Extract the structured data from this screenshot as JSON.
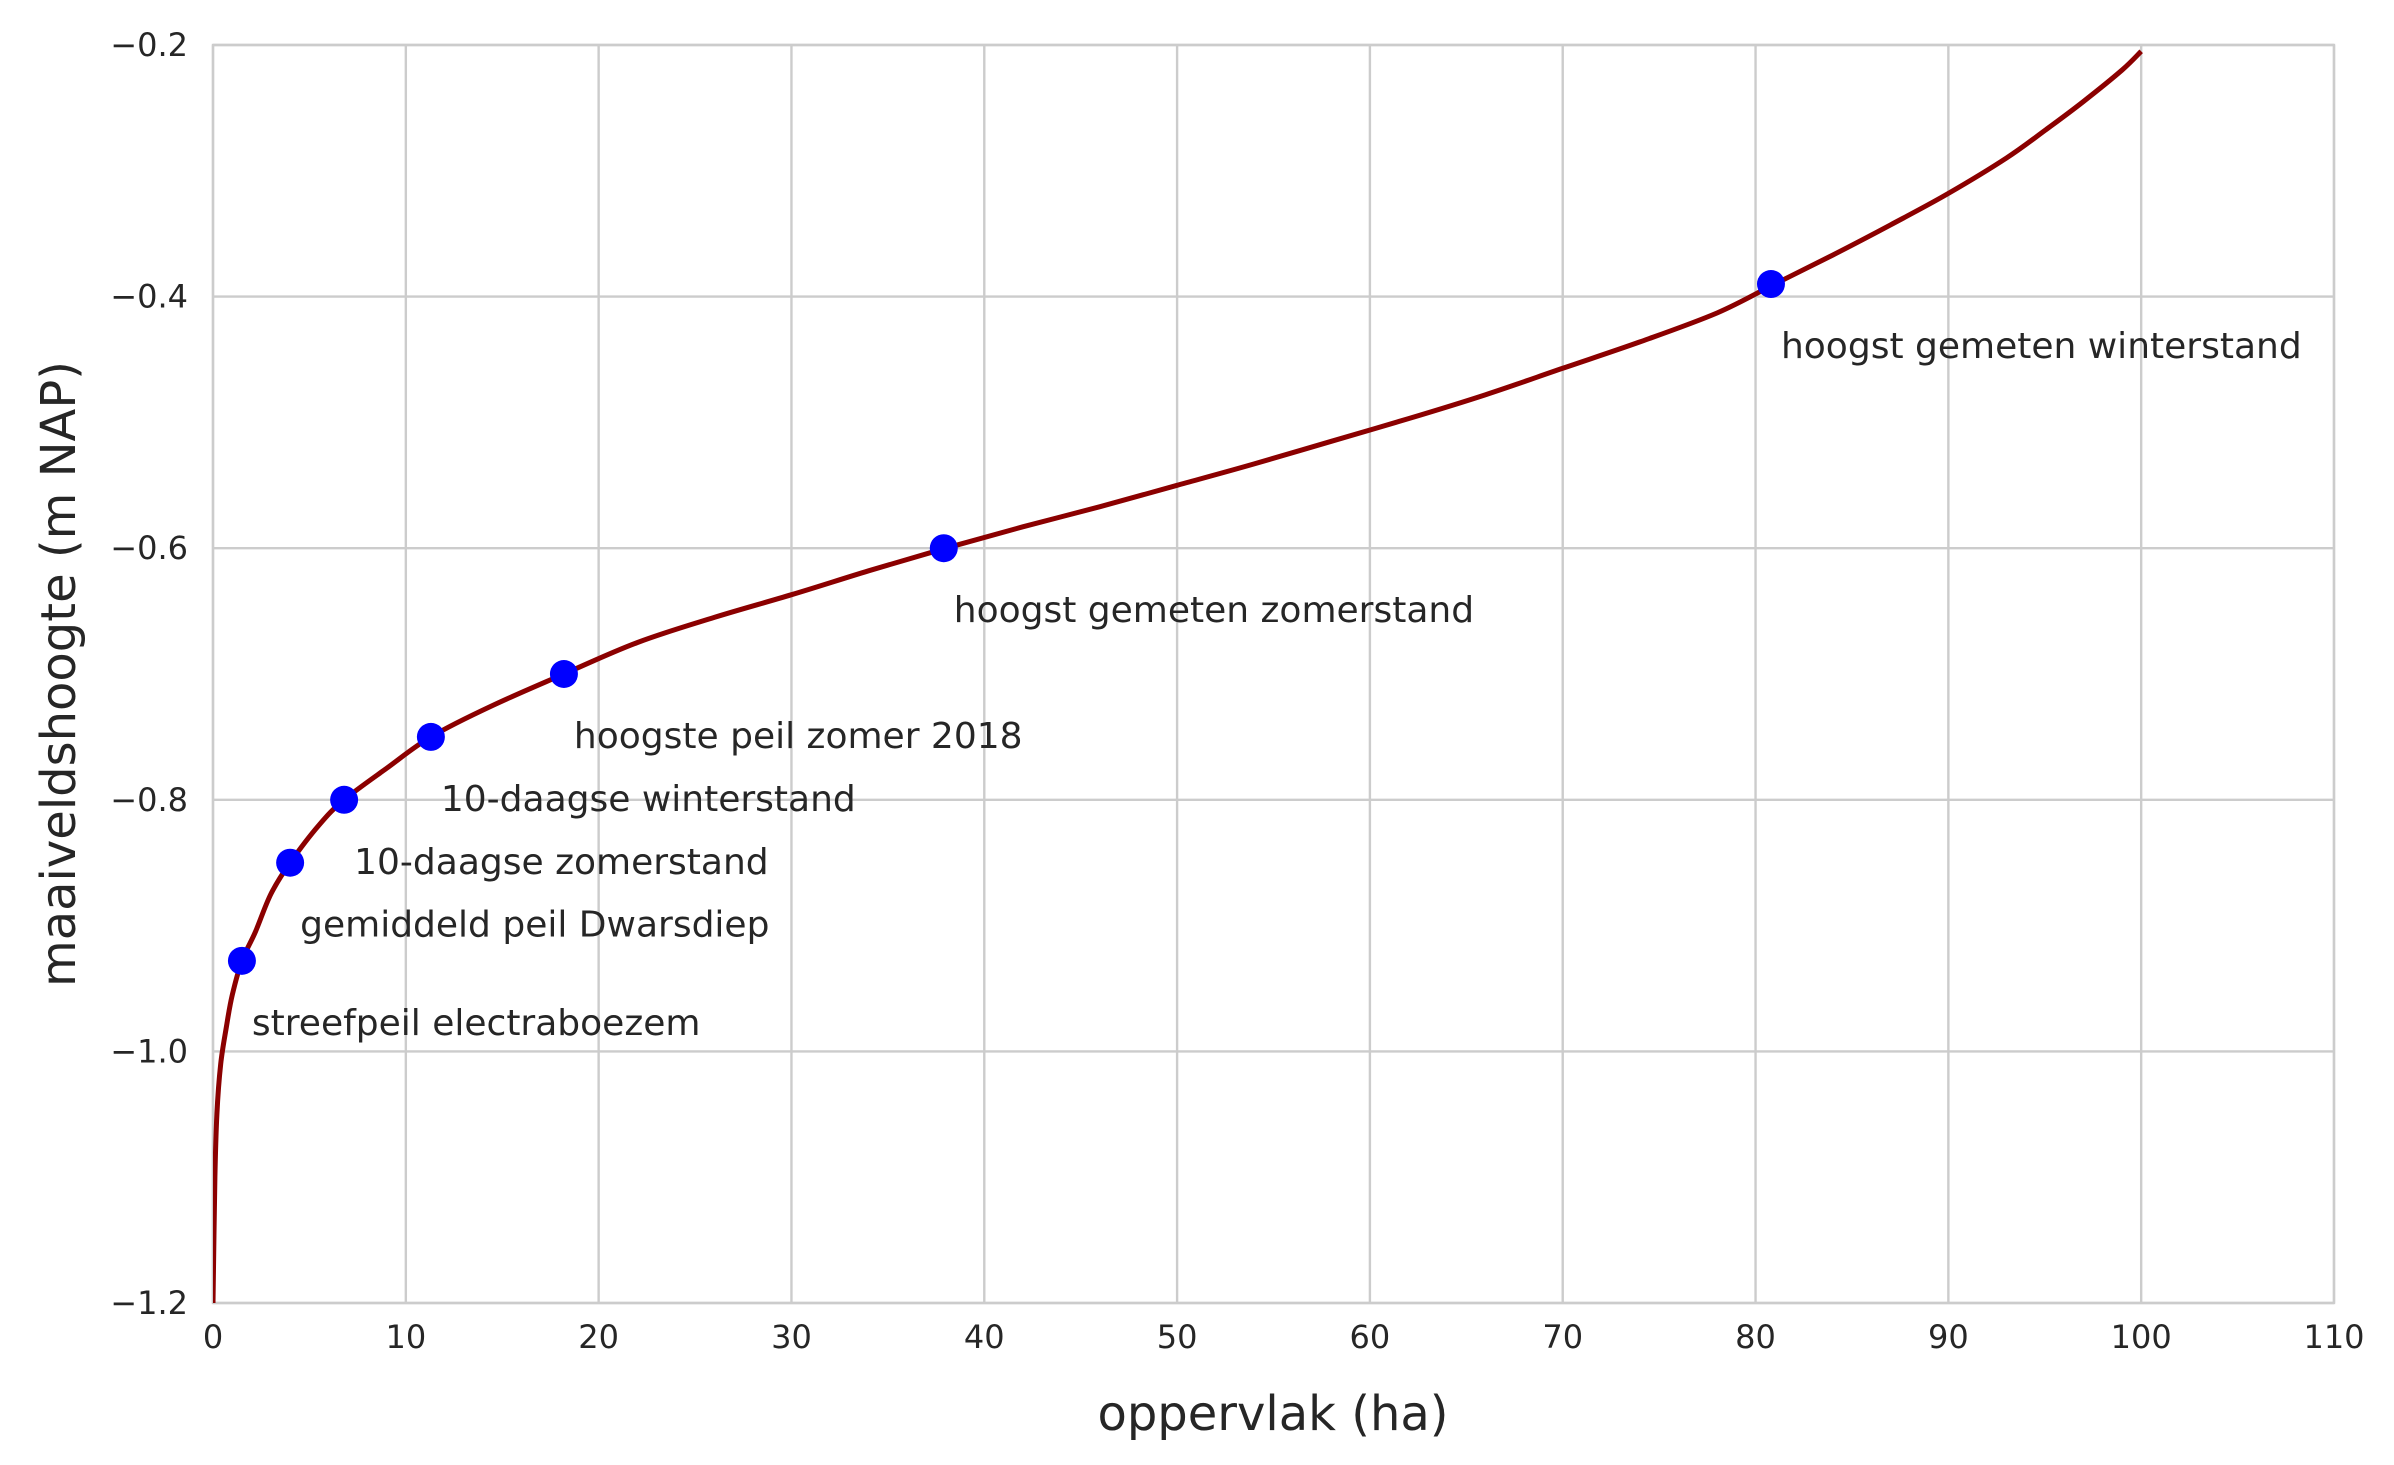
{
  "chart_data": {
    "type": "line",
    "title": "",
    "xlabel": "oppervlak (ha)",
    "ylabel": "maaiveldshoogte (m NAP)",
    "xlim": [
      0,
      110
    ],
    "ylim": [
      -1.2,
      -0.2
    ],
    "xticks": [
      0,
      10,
      20,
      30,
      40,
      50,
      60,
      70,
      80,
      90,
      100,
      110
    ],
    "yticks": [
      -1.2,
      -1.0,
      -0.8,
      -0.6,
      -0.4,
      -0.2
    ],
    "xtick_labels": [
      "0",
      "10",
      "20",
      "30",
      "40",
      "50",
      "60",
      "70",
      "80",
      "90",
      "100",
      "110"
    ],
    "ytick_labels": [
      "−1.2",
      "−1.0",
      "−0.8",
      "−0.6",
      "−0.4",
      "−0.2"
    ],
    "grid": true,
    "colors": {
      "line": "#8b0000",
      "marker": "#0000ff",
      "grid": "#cccccc",
      "text": "#262626"
    },
    "series": [
      {
        "x": [
          0.0,
          0.1,
          0.2,
          0.4,
          0.7,
          1.0,
          1.5,
          2.2,
          3.0,
          4.0,
          5.5,
          6.8,
          9.0,
          11.3,
          14.5,
          18.2,
          22,
          26,
          30,
          34,
          38,
          42,
          46,
          50,
          54,
          58,
          62,
          66,
          70,
          74,
          78,
          81,
          84,
          87,
          90,
          93,
          95,
          97,
          99,
          100
        ],
        "y": [
          -1.2,
          -1.1,
          -1.05,
          -1.01,
          -0.98,
          -0.955,
          -0.928,
          -0.905,
          -0.875,
          -0.85,
          -0.82,
          -0.8,
          -0.775,
          -0.75,
          -0.725,
          -0.7,
          -0.675,
          -0.655,
          -0.637,
          -0.618,
          -0.6,
          -0.583,
          -0.567,
          -0.55,
          -0.533,
          -0.515,
          -0.497,
          -0.478,
          -0.457,
          -0.436,
          -0.413,
          -0.39,
          -0.367,
          -0.343,
          -0.318,
          -0.29,
          -0.268,
          -0.245,
          -0.22,
          -0.205
        ]
      }
    ],
    "points": [
      {
        "x": 1.5,
        "y": -0.928,
        "label": "streefpeil electraboezem"
      },
      {
        "x": 4.0,
        "y": -0.85,
        "label": "gemiddeld peil Dwarsdiep"
      },
      {
        "x": 6.8,
        "y": -0.8,
        "label": "10-daagse zomerstand"
      },
      {
        "x": 11.3,
        "y": -0.75,
        "label": "10-daagse winterstand"
      },
      {
        "x": 18.2,
        "y": -0.7,
        "label": "hoogste peil zomer 2018"
      },
      {
        "x": 37.9,
        "y": -0.6,
        "label": "hoogst gemeten zomerstand"
      },
      {
        "x": 80.8,
        "y": -0.39,
        "label": "hoogst gemeten winterstand"
      }
    ]
  }
}
